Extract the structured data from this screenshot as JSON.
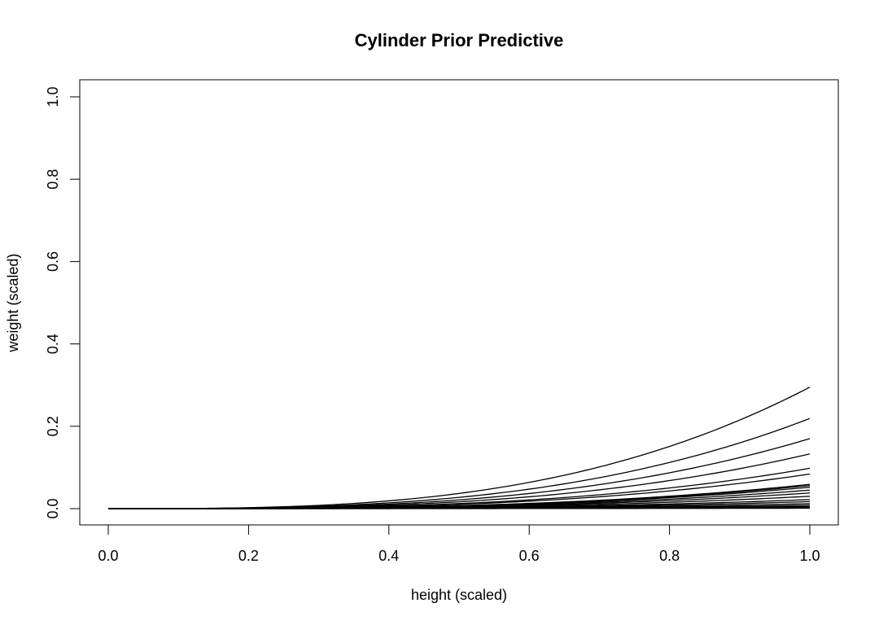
{
  "chart_data": {
    "type": "line",
    "title": "Cylinder Prior Predictive",
    "xlabel": "height (scaled)",
    "ylabel": "weight (scaled)",
    "xlim": [
      0,
      1
    ],
    "ylim": [
      0,
      1
    ],
    "x_ticks": [
      "0.0",
      "0.2",
      "0.4",
      "0.6",
      "0.8",
      "1.0"
    ],
    "y_ticks": [
      "0.0",
      "0.2",
      "0.4",
      "0.6",
      "0.8",
      "1.0"
    ],
    "grid": false,
    "legend": "none",
    "line_color": "#000000",
    "curve_form": "weight = k * height^3",
    "x": [
      0,
      0.1,
      0.2,
      0.3,
      0.4,
      0.5,
      0.6,
      0.7,
      0.8,
      0.9,
      1.0
    ],
    "series": [
      {
        "values": [
          0,
          0.0003,
          0.0024,
          0.008,
          0.0189,
          0.0369,
          0.0637,
          0.1012,
          0.151,
          0.215,
          0.295
        ]
      },
      {
        "values": [
          0,
          0.0002,
          0.0018,
          0.0059,
          0.014,
          0.0274,
          0.0473,
          0.0751,
          0.1121,
          0.1597,
          0.219
        ]
      },
      {
        "values": [
          0,
          0.0002,
          0.0014,
          0.0046,
          0.0109,
          0.0213,
          0.0367,
          0.0584,
          0.0872,
          0.1241,
          0.17
        ]
      },
      {
        "values": [
          0,
          0.0001,
          0.0011,
          0.0036,
          0.0085,
          0.0166,
          0.0287,
          0.0455,
          0.068,
          0.0969,
          0.133
        ]
      },
      {
        "values": [
          0,
          0.0001,
          0.0008,
          0.0026,
          0.0063,
          0.0123,
          0.0212,
          0.0336,
          0.0502,
          0.0714,
          0.098
        ]
      },
      {
        "values": [
          0,
          0.0001,
          0.0007,
          0.0023,
          0.0054,
          0.0105,
          0.0181,
          0.0288,
          0.043,
          0.0612,
          0.084
        ]
      },
      {
        "values": [
          0,
          0.0001,
          0.0005,
          0.0016,
          0.0038,
          0.0074,
          0.0127,
          0.0202,
          0.0302,
          0.043,
          0.059
        ]
      },
      {
        "values": [
          0,
          0.0001,
          0.0005,
          0.0015,
          0.0036,
          0.007,
          0.0121,
          0.0192,
          0.0287,
          0.0408,
          0.056
        ]
      },
      {
        "values": [
          0,
          0.0001,
          0.0004,
          0.0014,
          0.0033,
          0.0065,
          0.0112,
          0.0178,
          0.0266,
          0.0379,
          0.052
        ]
      },
      {
        "values": [
          0,
          0.0,
          0.0004,
          0.0012,
          0.0029,
          0.0056,
          0.0097,
          0.0154,
          0.023,
          0.0328,
          0.045
        ]
      },
      {
        "values": [
          0,
          0.0,
          0.0003,
          0.001,
          0.0024,
          0.0048,
          0.0082,
          0.013,
          0.0195,
          0.0277,
          0.038
        ]
      },
      {
        "values": [
          0,
          0.0,
          0.0002,
          0.0008,
          0.0019,
          0.0038,
          0.0065,
          0.0103,
          0.0154,
          0.0219,
          0.03
        ]
      },
      {
        "values": [
          0,
          0.0,
          0.0002,
          0.0006,
          0.0014,
          0.0028,
          0.0048,
          0.0075,
          0.0113,
          0.016,
          0.022
        ]
      },
      {
        "values": [
          0,
          0.0,
          0.0001,
          0.0005,
          0.0011,
          0.0021,
          0.0037,
          0.0058,
          0.0087,
          0.0124,
          0.017
        ]
      },
      {
        "values": [
          0,
          0.0,
          0.0001,
          0.0003,
          0.0008,
          0.0015,
          0.0026,
          0.0041,
          0.0061,
          0.0087,
          0.012
        ]
      },
      {
        "values": [
          0,
          0.0,
          0.0001,
          0.0002,
          0.0005,
          0.001,
          0.0018,
          0.0028,
          0.0041,
          0.0058,
          0.008
        ]
      },
      {
        "values": [
          0,
          0.0,
          0.0,
          0.0001,
          0.0003,
          0.0006,
          0.0011,
          0.0017,
          0.0026,
          0.0036,
          0.005
        ]
      },
      {
        "values": [
          0,
          0.0,
          0.0,
          0.0001,
          0.0002,
          0.0003,
          0.0006,
          0.0009,
          0.0013,
          0.0019,
          0.0026
        ]
      },
      {
        "values": [
          0,
          0.0,
          0.0,
          0.0,
          0.0001,
          0.0001,
          0.0002,
          0.0003,
          0.0005,
          0.0007,
          0.001
        ]
      }
    ]
  }
}
